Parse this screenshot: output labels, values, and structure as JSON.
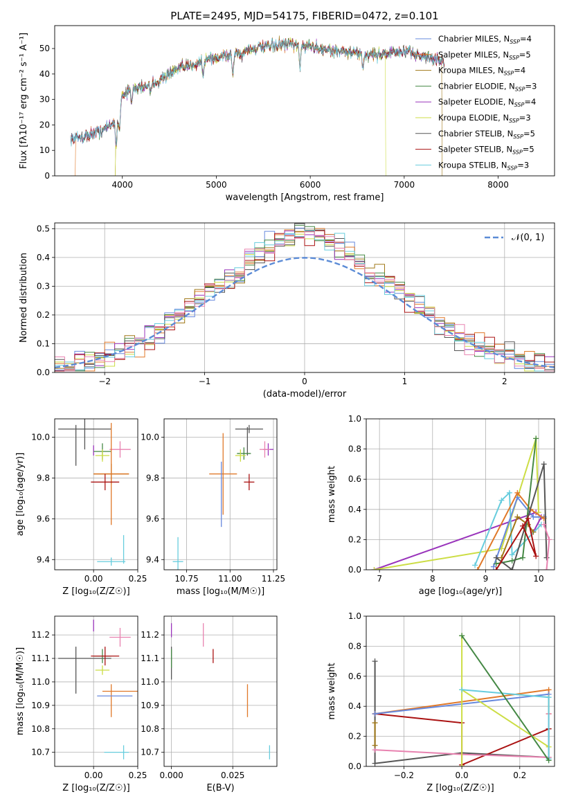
{
  "chart_data": [
    {
      "id": "spectrum",
      "type": "line",
      "title": "PLATE=2495, MJD=54175, FIBERID=0472, z=0.101",
      "xlabel": "wavelength [Angstrom, rest frame]",
      "ylabel": "Flux [fλ10⁻¹⁷ erg cm⁻² s⁻¹ A⁻¹]",
      "xlim": [
        3280,
        8600
      ],
      "ylim": [
        0,
        59
      ],
      "xticks": [
        4000,
        5000,
        6000,
        7000,
        8000
      ],
      "yticks": [
        0,
        10,
        20,
        30,
        40,
        50
      ],
      "continuum": [
        [
          3450,
          14.5
        ],
        [
          3600,
          15.5
        ],
        [
          3800,
          18
        ],
        [
          3950,
          22
        ],
        [
          4000,
          32
        ],
        [
          4100,
          34
        ],
        [
          4200,
          35
        ],
        [
          4300,
          36
        ],
        [
          4400,
          37.5
        ],
        [
          4500,
          40
        ],
        [
          4600,
          42
        ],
        [
          4700,
          43
        ],
        [
          4800,
          44.5
        ],
        [
          4900,
          46
        ],
        [
          5000,
          46
        ],
        [
          5100,
          47.5
        ],
        [
          5200,
          48
        ],
        [
          5300,
          49
        ],
        [
          5400,
          50
        ],
        [
          5500,
          50.5
        ],
        [
          5600,
          51
        ],
        [
          5700,
          51.5
        ],
        [
          5800,
          51.5
        ],
        [
          5900,
          51
        ],
        [
          6000,
          51
        ],
        [
          6100,
          50
        ],
        [
          6200,
          49.5
        ],
        [
          6300,
          49
        ],
        [
          6400,
          48.5
        ],
        [
          6500,
          48
        ],
        [
          6600,
          47.5
        ],
        [
          6700,
          47.5
        ],
        [
          6800,
          48
        ],
        [
          6900,
          48.5
        ],
        [
          7000,
          48.5
        ],
        [
          7100,
          48
        ],
        [
          7200,
          47
        ],
        [
          7300,
          46
        ],
        [
          7400,
          45.5
        ]
      ],
      "drops": [
        {
          "series": "Salpeter MILES",
          "x": [
            3500,
            7430
          ]
        },
        {
          "series": "Kroupa MILES",
          "x": [
            3930,
            7400
          ]
        },
        {
          "series": "Kroupa ELODIE",
          "x": [
            3930,
            6800
          ]
        }
      ],
      "legend_position": "upper-right",
      "legend": [
        {
          "name": "Chabrier MILES",
          "sub": "SSP",
          "n": "4",
          "color": "#6688dd"
        },
        {
          "name": "Salpeter MILES",
          "sub": "SSP",
          "n": "5",
          "color": "#e07828"
        },
        {
          "name": "Kroupa MILES",
          "sub": "SSP",
          "n": "4",
          "color": "#a07818"
        },
        {
          "name": "Chabrier ELODIE",
          "sub": "SSP",
          "n": "3",
          "color": "#448844"
        },
        {
          "name": "Salpeter ELODIE",
          "sub": "SSP",
          "n": "4",
          "color": "#9933bb"
        },
        {
          "name": "Kroupa ELODIE",
          "sub": "SSP",
          "n": "3",
          "color": "#ccdd44"
        },
        {
          "name": "Chabrier STELIB",
          "sub": "SSP",
          "n": "5",
          "color": "#555555"
        },
        {
          "name": "Salpeter STELIB",
          "sub": "SSP",
          "n": "5",
          "color": "#aa1111"
        },
        {
          "name": "Kroupa STELIB",
          "sub": "SSP",
          "n": "3",
          "color": "#66ccdd"
        }
      ]
    },
    {
      "id": "residuals",
      "type": "histogram",
      "xlabel": "(data-model)/error",
      "ylabel": "Normed distribution",
      "xlim": [
        -2.5,
        2.5
      ],
      "ylim": [
        0,
        0.52
      ],
      "xticks": [
        -2,
        -1,
        0,
        1,
        2
      ],
      "yticks": [
        0.0,
        0.1,
        0.2,
        0.3,
        0.4,
        0.5
      ],
      "bin_width": 0.1,
      "legend": {
        "label": "𝒩(0, 1)",
        "color": "#5b8bd6",
        "position": "upper-right"
      },
      "colors": [
        "#6688dd",
        "#e07828",
        "#a07818",
        "#448844",
        "#9933bb",
        "#ccdd44",
        "#555555",
        "#aa1111",
        "#66ccdd",
        "#e882b0"
      ]
    },
    {
      "id": "age-vs-z",
      "type": "scatter",
      "xlabel": "Z [log₁₀(Z/Z☉)]",
      "ylabel": "age  [log₁₀(age/yr)]",
      "xlim": [
        -0.22,
        0.25
      ],
      "ylim": [
        9.35,
        10.09
      ],
      "xticks": [
        0.0,
        0.25
      ],
      "yticks": [
        9.4,
        9.6,
        9.8,
        10.0
      ],
      "points": [
        {
          "x": -0.05,
          "xerr": 0.15,
          "y": 10.04,
          "yerr": 0.1,
          "color": "#555555"
        },
        {
          "x": -0.1,
          "xerr": 0.0,
          "y": 9.96,
          "yerr": 0.1,
          "color": "#555555"
        },
        {
          "x": 0.0,
          "xerr": 0.0,
          "y": 9.935,
          "yerr": 0.025,
          "color": "#9933bb"
        },
        {
          "x": 0.05,
          "xerr": 0.05,
          "y": 9.93,
          "yerr": 0.04,
          "color": "#448844"
        },
        {
          "x": 0.05,
          "xerr": 0.04,
          "y": 9.91,
          "yerr": 0.03,
          "color": "#ccdd44"
        },
        {
          "x": 0.15,
          "xerr": 0.06,
          "y": 9.94,
          "yerr": 0.04,
          "color": "#e882b0"
        },
        {
          "x": 0.1,
          "xerr": 0.1,
          "y": 9.82,
          "yerr": 0.05,
          "color": "#a07818"
        },
        {
          "x": 0.1,
          "xerr": 0.1,
          "y": 9.82,
          "yerr": 0.25,
          "color": "#e07828"
        },
        {
          "x": 0.065,
          "xerr": 0.08,
          "y": 9.78,
          "yerr": 0.04,
          "color": "#aa1111"
        },
        {
          "x": 0.1,
          "xerr": 0.08,
          "y": 9.39,
          "yerr": 0.02,
          "color": "#66ccdd"
        },
        {
          "x": 0.17,
          "xerr": 0.0,
          "y": 9.45,
          "yerr": 0.07,
          "color": "#66ccdd"
        }
      ]
    },
    {
      "id": "age-vs-mass",
      "type": "scatter",
      "xlabel": "mass [log₁₀(M/M☉)]",
      "xlim": [
        10.62,
        11.27
      ],
      "ylim": [
        9.35,
        10.09
      ],
      "xticks": [
        10.75,
        11.0,
        11.25
      ],
      "yticks": [
        9.4,
        9.6,
        9.8,
        10.0
      ],
      "points": [
        {
          "x": 11.11,
          "xerr": 0.08,
          "y": 10.04,
          "yerr": 0.02,
          "color": "#555555"
        },
        {
          "x": 11.1,
          "xerr": 0.0,
          "y": 9.98,
          "yerr": 0.07,
          "color": "#555555"
        },
        {
          "x": 11.22,
          "xerr": 0.03,
          "y": 9.94,
          "yerr": 0.03,
          "color": "#9933bb"
        },
        {
          "x": 11.08,
          "xerr": 0.04,
          "y": 9.92,
          "yerr": 0.03,
          "color": "#448844"
        },
        {
          "x": 11.06,
          "xerr": 0.03,
          "y": 9.91,
          "yerr": 0.03,
          "color": "#ccdd44"
        },
        {
          "x": 11.2,
          "xerr": 0.03,
          "y": 9.94,
          "yerr": 0.04,
          "color": "#e882b0"
        },
        {
          "x": 10.96,
          "xerr": 0.08,
          "y": 9.82,
          "yerr": 0.2,
          "color": "#e07828"
        },
        {
          "x": 10.95,
          "xerr": 0.0,
          "y": 9.72,
          "yerr": 0.16,
          "color": "#6688dd"
        },
        {
          "x": 11.11,
          "xerr": 0.03,
          "y": 9.78,
          "yerr": 0.04,
          "color": "#aa1111"
        },
        {
          "x": 10.7,
          "xerr": 0.03,
          "y": 9.39,
          "yerr": 0.0,
          "color": "#66ccdd"
        },
        {
          "x": 10.7,
          "xerr": 0.0,
          "y": 9.43,
          "yerr": 0.08,
          "color": "#66ccdd"
        }
      ]
    },
    {
      "id": "weight-vs-age",
      "type": "line",
      "xlabel": "age  [log₁₀(age/yr)]",
      "ylabel": "mass weight",
      "xlim": [
        6.75,
        10.3
      ],
      "ylim": [
        0,
        1.0
      ],
      "xticks": [
        7,
        8,
        9,
        10
      ],
      "yticks": [
        0.0,
        0.2,
        0.4,
        0.6,
        0.8,
        1.0
      ],
      "series": [
        {
          "color": "#9933bb",
          "points": [
            [
              6.9,
              0.0
            ],
            [
              9.95,
              0.38
            ],
            [
              10.05,
              0.35
            ],
            [
              9.9,
              0.25
            ]
          ]
        },
        {
          "color": "#ccdd44",
          "points": [
            [
              6.9,
              0.0
            ],
            [
              9.3,
              0.14
            ],
            [
              9.95,
              0.87
            ],
            [
              10.0,
              0.38
            ]
          ]
        },
        {
          "color": "#66ccdd",
          "points": [
            [
              8.8,
              0.03
            ],
            [
              9.3,
              0.46
            ],
            [
              9.45,
              0.51
            ],
            [
              9.5,
              0.1
            ],
            [
              10.05,
              0.3
            ]
          ]
        },
        {
          "color": "#6688dd",
          "points": [
            [
              9.15,
              0.02
            ],
            [
              9.6,
              0.48
            ],
            [
              9.9,
              0.35
            ],
            [
              10.1,
              0.35
            ]
          ]
        },
        {
          "color": "#e07828",
          "points": [
            [
              8.85,
              0.0
            ],
            [
              9.6,
              0.51
            ],
            [
              9.85,
              0.4
            ],
            [
              10.1,
              0.34
            ]
          ]
        },
        {
          "color": "#a07818",
          "points": [
            [
              9.3,
              0.08
            ],
            [
              9.6,
              0.35
            ],
            [
              9.8,
              0.3
            ],
            [
              9.9,
              0.25
            ]
          ]
        },
        {
          "color": "#448844",
          "points": [
            [
              9.2,
              0.04
            ],
            [
              9.5,
              0.06
            ],
            [
              9.7,
              0.08
            ],
            [
              9.95,
              0.87
            ]
          ]
        },
        {
          "color": "#555555",
          "points": [
            [
              9.2,
              0.08
            ],
            [
              9.5,
              0.0
            ],
            [
              10.1,
              0.7
            ],
            [
              10.15,
              0.08
            ]
          ]
        },
        {
          "color": "#aa1111",
          "points": [
            [
              9.2,
              0.0
            ],
            [
              9.8,
              0.34
            ],
            [
              9.95,
              0.09
            ],
            [
              9.7,
              0.29
            ]
          ]
        },
        {
          "color": "#e882b0",
          "points": [
            [
              10.1,
              0.3
            ],
            [
              10.2,
              0.2
            ],
            [
              10.15,
              0.0
            ]
          ]
        }
      ]
    },
    {
      "id": "mass-vs-z",
      "type": "scatter",
      "xlabel": "Z [log₁₀(Z/Z☉)]",
      "ylabel": "mass [log₁₀(M/M☉)]",
      "xlim": [
        -0.22,
        0.25
      ],
      "ylim": [
        10.64,
        11.28
      ],
      "xticks": [
        0.0,
        0.25
      ],
      "yticks": [
        10.7,
        10.8,
        10.9,
        11.0,
        11.1,
        11.2
      ],
      "points": [
        {
          "x": -0.05,
          "xerr": 0.15,
          "y": 11.1,
          "yerr": 0.0,
          "color": "#555555"
        },
        {
          "x": -0.1,
          "xerr": 0.0,
          "y": 11.05,
          "yerr": 0.1,
          "color": "#555555"
        },
        {
          "x": 0.0,
          "xerr": 0.0,
          "y": 11.2,
          "yerr": 0.0,
          "color": "#555555"
        },
        {
          "x": 0.0,
          "xerr": 0.0,
          "y": 11.24,
          "yerr": 0.025,
          "color": "#9933bb"
        },
        {
          "x": 0.05,
          "xerr": 0.05,
          "y": 11.11,
          "yerr": 0.03,
          "color": "#448844"
        },
        {
          "x": 0.05,
          "xerr": 0.04,
          "y": 11.05,
          "yerr": 0.02,
          "color": "#ccdd44"
        },
        {
          "x": 0.15,
          "xerr": 0.06,
          "y": 11.19,
          "yerr": 0.04,
          "color": "#e882b0"
        },
        {
          "x": 0.065,
          "xerr": 0.08,
          "y": 11.11,
          "yerr": 0.04,
          "color": "#aa1111"
        },
        {
          "x": 0.15,
          "xerr": 0.1,
          "y": 10.96,
          "yerr": 0.0,
          "color": "#e07828"
        },
        {
          "x": 0.1,
          "xerr": 0.0,
          "y": 10.92,
          "yerr": 0.07,
          "color": "#e07828"
        },
        {
          "x": 0.12,
          "xerr": 0.1,
          "y": 10.94,
          "yerr": 0.0,
          "color": "#6688dd"
        },
        {
          "x": 0.13,
          "xerr": 0.07,
          "y": 10.7,
          "yerr": 0.0,
          "color": "#66ccdd"
        },
        {
          "x": 0.17,
          "xerr": 0.0,
          "y": 10.7,
          "yerr": 0.03,
          "color": "#66ccdd"
        }
      ]
    },
    {
      "id": "mass-vs-ebv",
      "type": "scatter",
      "xlabel": "E(B-V)",
      "xlim": [
        -0.003,
        0.043
      ],
      "ylim": [
        10.64,
        11.28
      ],
      "xticks": [
        0.0,
        0.025
      ],
      "xtick_labels": [
        "0.000",
        "0.025"
      ],
      "yticks": [
        10.7,
        10.8,
        10.9,
        11.0,
        11.1,
        11.2
      ],
      "points": [
        {
          "x": 0.0,
          "xerr": 0.0,
          "y": 11.22,
          "yerr": 0.03,
          "color": "#9933bb"
        },
        {
          "x": 0.0,
          "xerr": 0.0,
          "y": 11.08,
          "yerr": 0.07,
          "color": "#555555"
        },
        {
          "x": 0.0,
          "xerr": 0.0,
          "y": 11.1,
          "yerr": 0.04,
          "color": "#448844"
        },
        {
          "x": 0.013,
          "xerr": 0.0,
          "y": 11.2,
          "yerr": 0.05,
          "color": "#e882b0"
        },
        {
          "x": 0.017,
          "xerr": 0.0,
          "y": 11.11,
          "yerr": 0.03,
          "color": "#aa1111"
        },
        {
          "x": 0.031,
          "xerr": 0.0,
          "y": 10.92,
          "yerr": 0.07,
          "color": "#e07828"
        },
        {
          "x": 0.04,
          "xerr": 0.0,
          "y": 10.7,
          "yerr": 0.03,
          "color": "#66ccdd"
        }
      ]
    },
    {
      "id": "weight-vs-z",
      "type": "line",
      "xlabel": "Z [log₁₀(Z/Z☉)]",
      "ylabel": "mass weight",
      "xlim": [
        -0.33,
        0.32
      ],
      "ylim": [
        0,
        1.0
      ],
      "xticks": [
        -0.2,
        0.0,
        0.2
      ],
      "yticks": [
        0.0,
        0.2,
        0.4,
        0.6,
        0.8,
        1.0
      ],
      "series": [
        {
          "color": "#555555",
          "points": [
            [
              -0.3,
              0.7
            ],
            [
              -0.3,
              0.02
            ],
            [
              0.0,
              0.09
            ],
            [
              0.3,
              0.06
            ],
            [
              0.3,
              0.25
            ]
          ]
        },
        {
          "color": "#aa1111",
          "points": [
            [
              -0.3,
              0.35
            ],
            [
              0.0,
              0.29
            ],
            [
              0.0,
              0.01
            ],
            [
              0.3,
              0.25
            ]
          ]
        },
        {
          "color": "#e07828",
          "points": [
            [
              -0.3,
              0.35
            ],
            [
              0.3,
              0.51
            ],
            [
              0.3,
              0.35
            ]
          ]
        },
        {
          "color": "#6688dd",
          "points": [
            [
              -0.3,
              0.35
            ],
            [
              0.3,
              0.48
            ]
          ]
        },
        {
          "color": "#e882b0",
          "points": [
            [
              -0.3,
              0.11
            ],
            [
              0.0,
              0.08
            ],
            [
              0.3,
              0.06
            ],
            [
              0.3,
              0.35
            ]
          ]
        },
        {
          "color": "#ccdd44",
          "points": [
            [
              0.0,
              0.0
            ],
            [
              0.0,
              0.87
            ],
            [
              0.0,
              0.51
            ],
            [
              0.3,
              0.13
            ]
          ]
        },
        {
          "color": "#66ccdd",
          "points": [
            [
              0.0,
              0.51
            ],
            [
              0.3,
              0.46
            ],
            [
              0.3,
              0.05
            ]
          ]
        },
        {
          "color": "#448844",
          "points": [
            [
              0.0,
              0.87
            ],
            [
              0.3,
              0.04
            ]
          ]
        },
        {
          "color": "#a07818",
          "points": [
            [
              -0.3,
              0.14
            ],
            [
              -0.3,
              0.29
            ]
          ]
        }
      ]
    }
  ]
}
